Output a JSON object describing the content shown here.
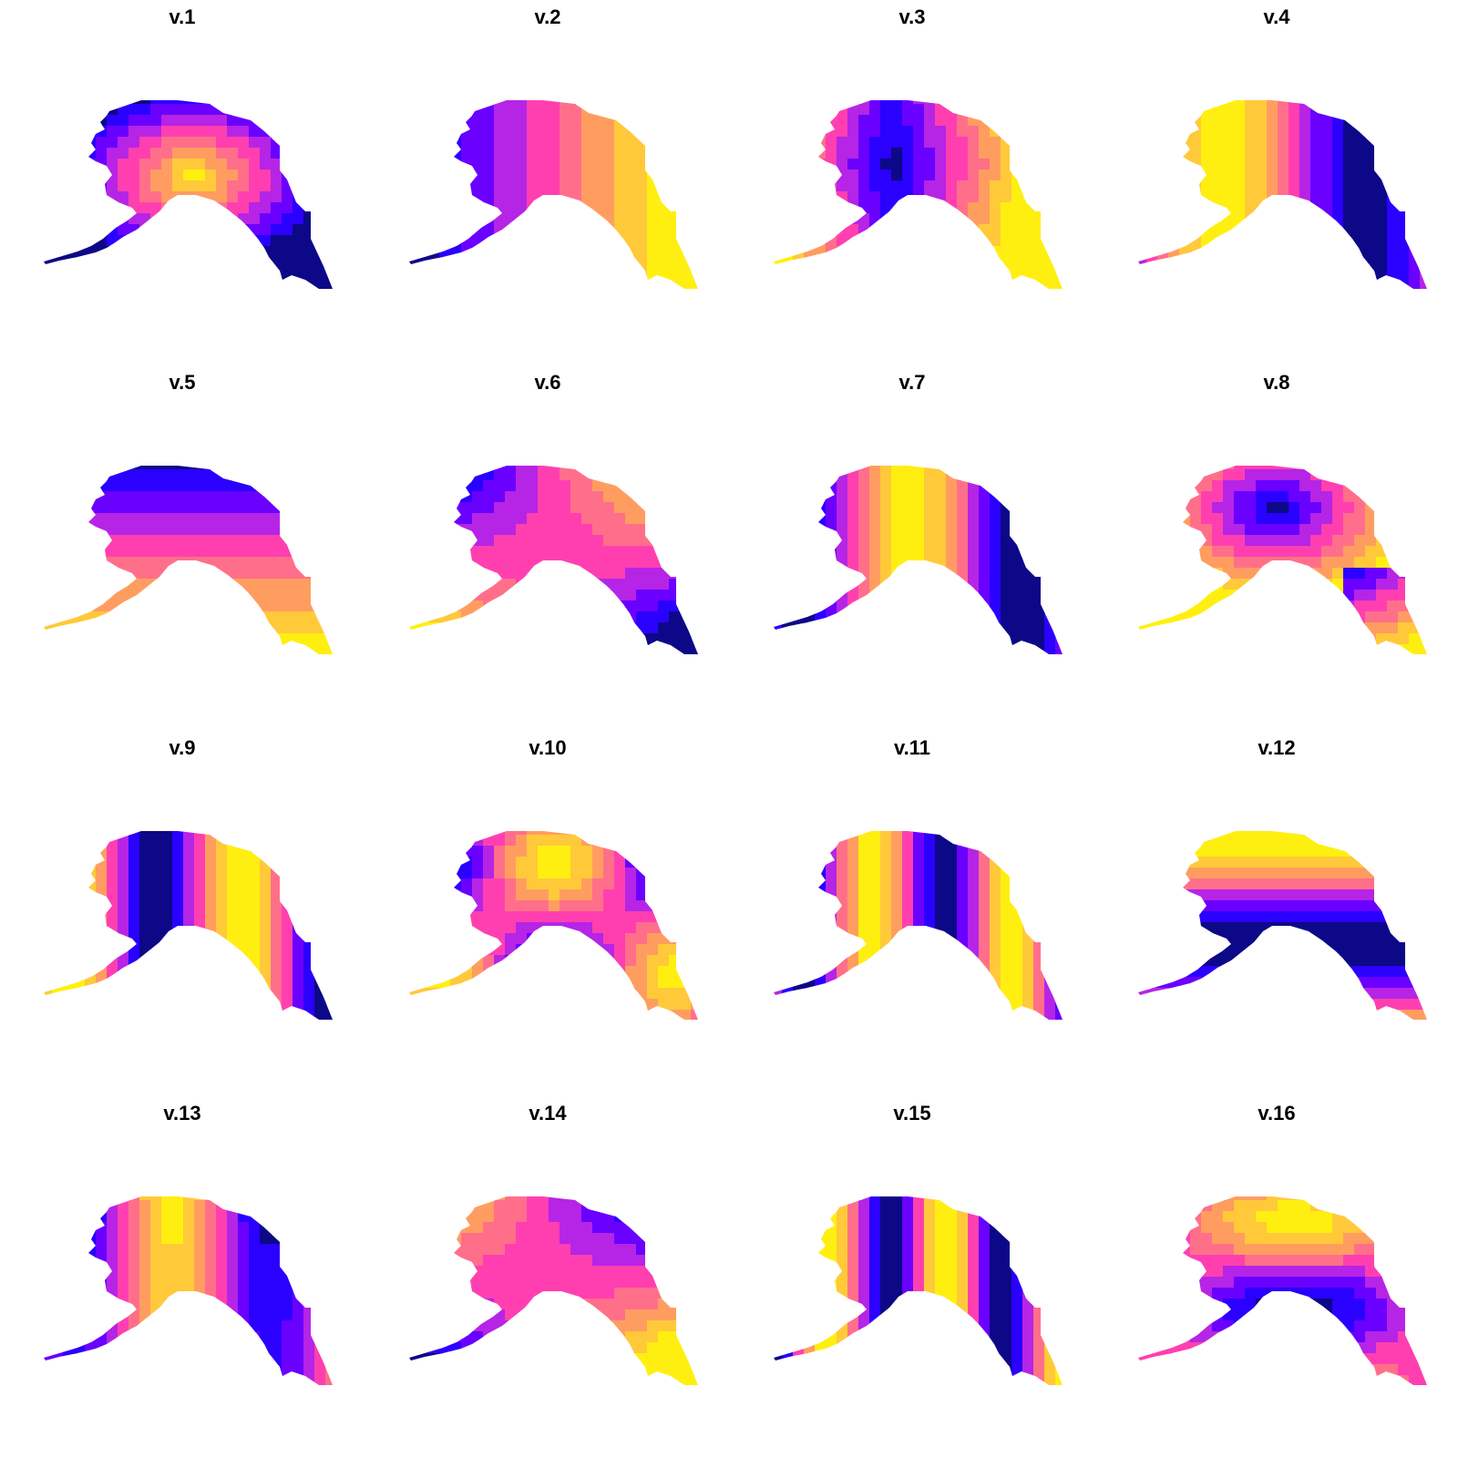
{
  "figure": {
    "panels": [
      {
        "title": "v.1",
        "pattern": "radial-center",
        "polarity": 1
      },
      {
        "title": "v.2",
        "pattern": "west-east",
        "polarity": 1
      },
      {
        "title": "v.3",
        "pattern": "center-low-x",
        "polarity": 1
      },
      {
        "title": "v.4",
        "pattern": "two-bands-x",
        "polarity": 1
      },
      {
        "title": "v.5",
        "pattern": "north-south",
        "polarity": -1
      },
      {
        "title": "v.6",
        "pattern": "quadrant-xy",
        "polarity": 1
      },
      {
        "title": "v.7",
        "pattern": "three-bands-x",
        "polarity": 1
      },
      {
        "title": "v.8",
        "pattern": "blob-ne",
        "polarity": -1
      },
      {
        "title": "v.9",
        "pattern": "four-bands-x",
        "polarity": 1
      },
      {
        "title": "v.10",
        "pattern": "xy-product",
        "polarity": 1
      },
      {
        "title": "v.11",
        "pattern": "five-bands-x",
        "polarity": 1
      },
      {
        "title": "v.12",
        "pattern": "bands-y",
        "polarity": 1
      },
      {
        "title": "v.13",
        "pattern": "x3-y",
        "polarity": 1
      },
      {
        "title": "v.14",
        "pattern": "quadrant-flip",
        "polarity": -1
      },
      {
        "title": "v.15",
        "pattern": "six-bands-x",
        "polarity": 1
      },
      {
        "title": "v.16",
        "pattern": "y2-x",
        "polarity": 1
      }
    ],
    "palette": [
      "#0d0887",
      "#2a00ff",
      "#6a00ff",
      "#b624e6",
      "#ff3fb0",
      "#ff6f8a",
      "#ff9d60",
      "#ffc93a",
      "#ffef10"
    ]
  }
}
